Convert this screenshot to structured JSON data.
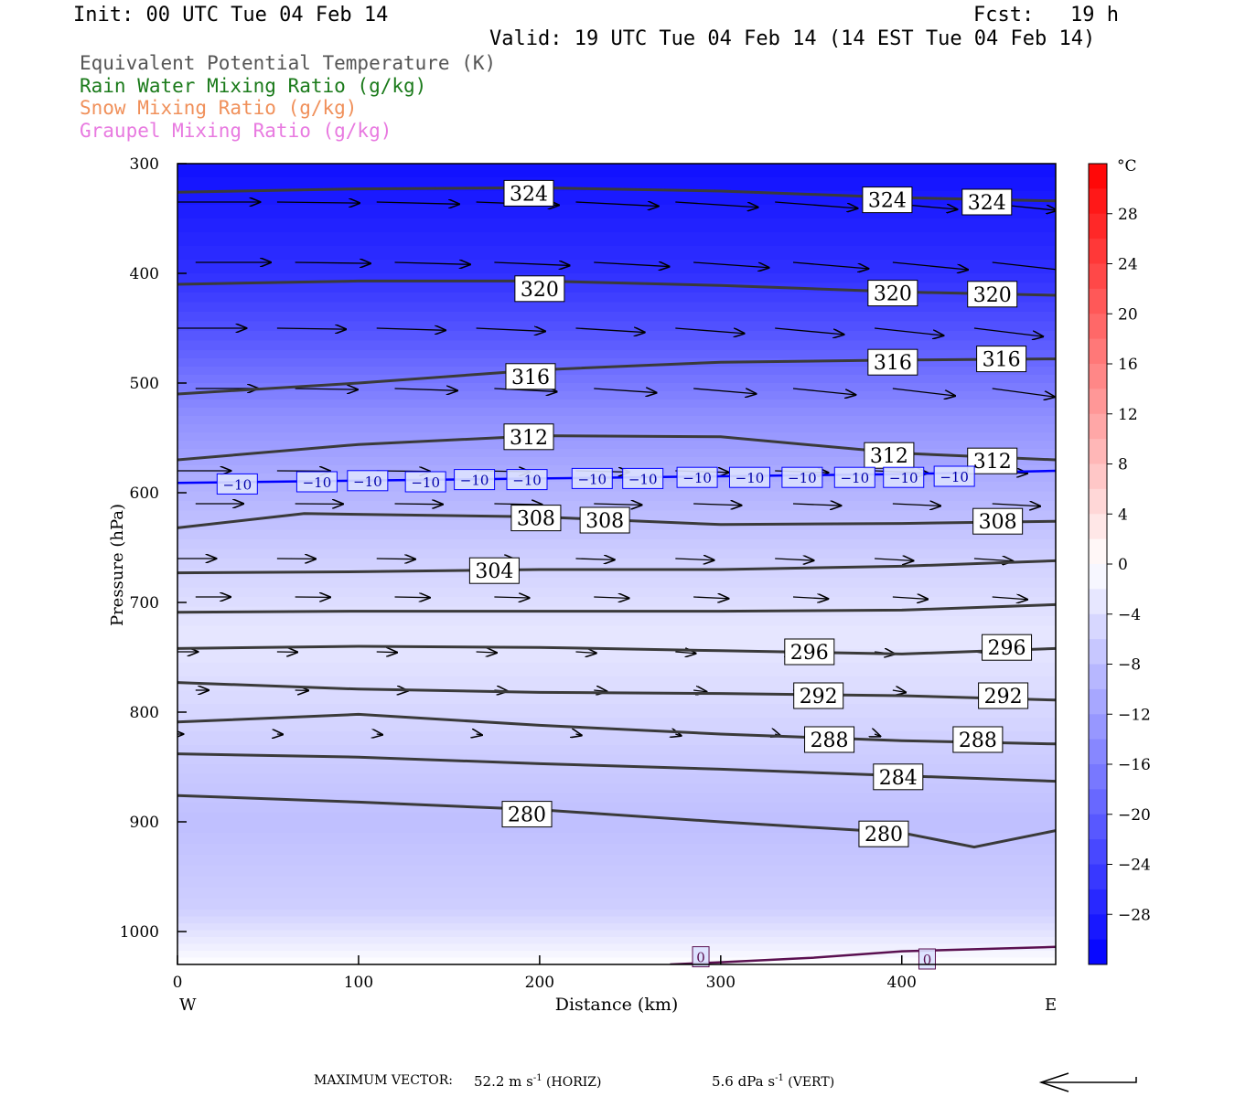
{
  "header": {
    "init": "Init: 00 UTC Tue 04 Feb 14",
    "fcst": "Fcst:   19 h",
    "valid": "Valid: 19 UTC Tue 04 Feb 14 (14 EST Tue 04 Feb 14)"
  },
  "legend": [
    {
      "label": "Equivalent Potential Temperature (K)",
      "color": "#555555"
    },
    {
      "label": "Rain Water Mixing Ratio (g/kg)",
      "color": "#1a7a1a"
    },
    {
      "label": "Snow Mixing Ratio (g/kg)",
      "color": "#f0905a"
    },
    {
      "label": "Graupel Mixing Ratio (g/kg)",
      "color": "#e87ae0"
    }
  ],
  "chart_data": {
    "type": "contour",
    "xlabel": "Distance (km)",
    "ylabel": "Pressure (hPa)",
    "xlim": [
      0,
      485
    ],
    "ylim": [
      300,
      1030
    ],
    "x_ticks": [
      0,
      100,
      200,
      300,
      400
    ],
    "y_ticks": [
      300,
      400,
      500,
      600,
      700,
      800,
      900,
      1000
    ],
    "x_end_labels": {
      "left": "W",
      "right": "E"
    },
    "colorbar": {
      "unit": "°C",
      "range": [
        -32,
        32
      ],
      "ticks": [
        "28",
        "24",
        "20",
        "16",
        "12",
        "8",
        "4",
        "0",
        "−4",
        "−8",
        "−12",
        "−16",
        "−20",
        "−24",
        "−28"
      ],
      "tick_values": [
        28,
        24,
        20,
        16,
        12,
        8,
        4,
        0,
        -4,
        -8,
        -12,
        -16,
        -20,
        -24,
        -28
      ],
      "cold_color": "#0000ff",
      "warm_color": "#ff0000"
    },
    "temperature_shading": [
      {
        "temp": -30,
        "p": 300
      },
      {
        "temp": -26,
        "p": 400
      },
      {
        "temp": -20,
        "p": 470
      },
      {
        "temp": -14,
        "p": 530
      },
      {
        "temp": -10,
        "p": 590
      },
      {
        "temp": -6,
        "p": 660
      },
      {
        "temp": -3,
        "p": 730
      },
      {
        "temp": -6,
        "p": 830
      },
      {
        "temp": -8,
        "p": 900
      },
      {
        "temp": -6,
        "p": 980
      },
      {
        "temp": 0,
        "p": 1030
      }
    ],
    "theta_e_contours": [
      {
        "value": "324",
        "points": [
          [
            0,
            326
          ],
          [
            100,
            323
          ],
          [
            200,
            322
          ],
          [
            300,
            325
          ],
          [
            400,
            331
          ],
          [
            485,
            334
          ]
        ],
        "labels": [
          [
            194,
            327
          ],
          [
            392,
            333
          ],
          [
            447,
            335
          ]
        ]
      },
      {
        "value": "320",
        "points": [
          [
            0,
            410
          ],
          [
            100,
            407
          ],
          [
            200,
            407
          ],
          [
            300,
            411
          ],
          [
            400,
            417
          ],
          [
            485,
            420
          ]
        ],
        "labels": [
          [
            200,
            414
          ],
          [
            395,
            418
          ],
          [
            450,
            419
          ]
        ]
      },
      {
        "value": "316",
        "points": [
          [
            0,
            510
          ],
          [
            100,
            500
          ],
          [
            200,
            488
          ],
          [
            300,
            481
          ],
          [
            400,
            479
          ],
          [
            485,
            478
          ]
        ],
        "labels": [
          [
            195,
            494
          ],
          [
            395,
            481
          ],
          [
            455,
            478
          ]
        ]
      },
      {
        "value": "312",
        "points": [
          [
            0,
            570
          ],
          [
            100,
            556
          ],
          [
            200,
            548
          ],
          [
            300,
            549
          ],
          [
            400,
            564
          ],
          [
            485,
            570
          ]
        ],
        "labels": [
          [
            194,
            549
          ],
          [
            393,
            566
          ],
          [
            450,
            571
          ]
        ]
      },
      {
        "value": "308",
        "points": [
          [
            0,
            632
          ],
          [
            70,
            619
          ],
          [
            200,
            622
          ],
          [
            300,
            629
          ],
          [
            400,
            628
          ],
          [
            485,
            626
          ]
        ],
        "labels": [
          [
            198,
            623
          ],
          [
            236,
            625
          ],
          [
            453,
            626
          ]
        ]
      },
      {
        "value": "304",
        "points": [
          [
            0,
            673
          ],
          [
            100,
            672
          ],
          [
            200,
            670
          ],
          [
            300,
            670
          ],
          [
            400,
            667
          ],
          [
            485,
            662
          ]
        ],
        "labels": [
          [
            175,
            671
          ]
        ]
      },
      {
        "value": "300",
        "points": [
          [
            0,
            709
          ],
          [
            100,
            708
          ],
          [
            200,
            708
          ],
          [
            300,
            708
          ],
          [
            400,
            707
          ],
          [
            485,
            702
          ]
        ],
        "labels": []
      },
      {
        "value": "296",
        "points": [
          [
            0,
            742
          ],
          [
            100,
            740
          ],
          [
            200,
            741
          ],
          [
            300,
            744
          ],
          [
            400,
            747
          ],
          [
            485,
            742
          ]
        ],
        "labels": [
          [
            349,
            745
          ],
          [
            458,
            741
          ]
        ]
      },
      {
        "value": "292",
        "points": [
          [
            0,
            773
          ],
          [
            100,
            779
          ],
          [
            200,
            782
          ],
          [
            300,
            783
          ],
          [
            400,
            785
          ],
          [
            485,
            789
          ]
        ],
        "labels": [
          [
            354,
            785
          ],
          [
            456,
            785
          ]
        ]
      },
      {
        "value": "288",
        "points": [
          [
            0,
            809
          ],
          [
            100,
            802
          ],
          [
            200,
            812
          ],
          [
            300,
            820
          ],
          [
            400,
            826
          ],
          [
            485,
            829
          ]
        ],
        "labels": [
          [
            360,
            825
          ],
          [
            442,
            825
          ]
        ]
      },
      {
        "value": "284",
        "points": [
          [
            0,
            838
          ],
          [
            100,
            841
          ],
          [
            200,
            847
          ],
          [
            300,
            852
          ],
          [
            400,
            858
          ],
          [
            485,
            863
          ]
        ],
        "labels": [
          [
            398,
            859
          ]
        ]
      },
      {
        "value": "280",
        "points": [
          [
            0,
            876
          ],
          [
            100,
            882
          ],
          [
            200,
            889
          ],
          [
            300,
            900
          ],
          [
            400,
            910
          ],
          [
            440,
            923
          ],
          [
            485,
            908
          ]
        ],
        "labels": [
          [
            193,
            893
          ],
          [
            390,
            911
          ]
        ]
      }
    ],
    "temperature_contours": [
      {
        "value": "−10",
        "color": "#0000ff",
        "points": [
          [
            0,
            591
          ],
          [
            100,
            589
          ],
          [
            200,
            587
          ],
          [
            300,
            585
          ],
          [
            400,
            583
          ],
          [
            485,
            580
          ]
        ],
        "labels": [
          [
            33,
            592
          ],
          [
            77,
            590
          ],
          [
            105,
            589
          ],
          [
            137,
            590
          ],
          [
            164,
            588
          ],
          [
            193,
            588
          ],
          [
            229,
            587
          ],
          [
            257,
            587
          ],
          [
            287,
            586
          ],
          [
            316,
            586
          ],
          [
            345,
            586
          ],
          [
            374,
            586
          ],
          [
            401,
            586
          ],
          [
            429,
            585
          ]
        ]
      },
      {
        "value": "0",
        "color": "#5a1050",
        "points": [
          [
            272,
            1030
          ],
          [
            300,
            1028
          ],
          [
            350,
            1024
          ],
          [
            400,
            1018
          ],
          [
            485,
            1014
          ]
        ],
        "labels": [
          [
            289,
            1023
          ],
          [
            414,
            1025
          ]
        ]
      }
    ],
    "wind_note": "Wind vectors (horizontal and vertical components) overlaid in the section"
  },
  "footer": {
    "prefix": "MAXIMUM VECTOR:",
    "horiz_value": "52.2 m s",
    "horiz_exp": "-1",
    "horiz_suffix": " (HORIZ)",
    "vert_value": "5.6 dPa s",
    "vert_exp": "-1",
    "vert_suffix": " (VERT)"
  }
}
